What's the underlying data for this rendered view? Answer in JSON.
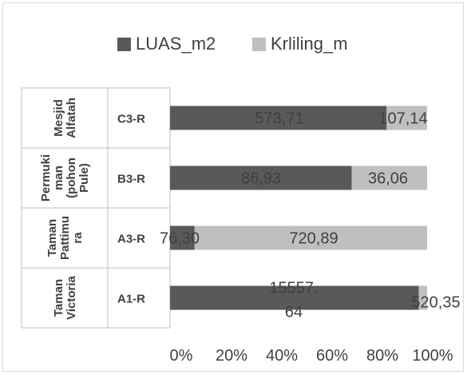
{
  "chart_data": {
    "type": "bar",
    "orientation": "horizontal",
    "stacking": "percent",
    "legend_position": "top",
    "grid": false,
    "x_ticks": [
      "0%",
      "20%",
      "40%",
      "60%",
      "80%",
      "100%"
    ],
    "xlim": [
      0,
      100
    ],
    "series": [
      {
        "name": "LUAS_m2",
        "color": "#595959"
      },
      {
        "name": "Krliling_m",
        "color": "#bfbfbf"
      }
    ],
    "rows": [
      {
        "group": "Mesjid Alfatah",
        "code": "C3-R",
        "values": [
          573.71,
          107.14
        ],
        "labels": [
          "573,71",
          "107,14"
        ]
      },
      {
        "group": "Permukiman (pohon Pule)",
        "code": "B3-R",
        "values": [
          86.93,
          36.06
        ],
        "labels": [
          "86,93",
          "36,06"
        ]
      },
      {
        "group": "Taman Pattimura",
        "code": "A3-R",
        "values": [
          76.3,
          720.89
        ],
        "labels": [
          "76,30",
          "720,89"
        ]
      },
      {
        "group": "Taman Victoria",
        "code": "A1-R",
        "values": [
          15557.64,
          520.35
        ],
        "labels": [
          "15557,64",
          "520,35"
        ]
      }
    ]
  }
}
